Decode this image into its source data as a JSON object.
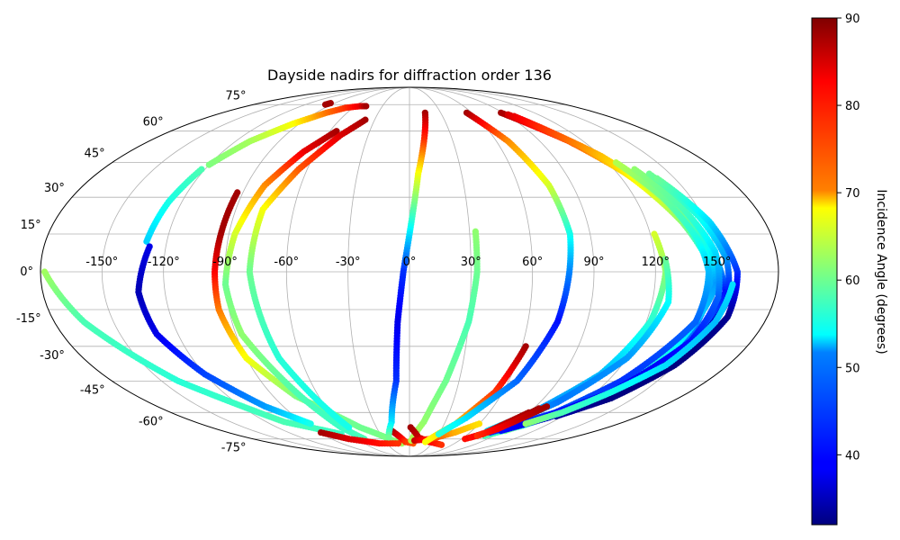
{
  "chart_data": {
    "type": "scatter",
    "projection": "mollweide",
    "title": "Dayside nadirs for diffraction order 136",
    "lon_ticks": [
      "-150°",
      "-120°",
      "-90°",
      "-60°",
      "-30°",
      "0°",
      "30°",
      "60°",
      "90°",
      "120°",
      "150°"
    ],
    "lat_ticks": [
      "-75°",
      "-60°",
      "-45°",
      "-30°",
      "-15°",
      "0°",
      "15°",
      "30°",
      "45°",
      "60°",
      "75°"
    ],
    "grid": true,
    "colorbar": {
      "label": "Incidence Angle (degrees)",
      "range": [
        32,
        90
      ],
      "ticks": [
        "40",
        "50",
        "60",
        "70",
        "80",
        "90"
      ],
      "colormap": "jet"
    },
    "tracks": [
      {
        "points": [
          [
            -178,
            0,
            63
          ],
          [
            -165,
            -20,
            58
          ],
          [
            -140,
            -45,
            56
          ],
          [
            -105,
            -65,
            58
          ],
          [
            -70,
            -72,
            57
          ]
        ]
      },
      {
        "points": [
          [
            -97,
            75,
            88
          ],
          [
            -95,
            76,
            88
          ]
        ]
      },
      {
        "points": [
          [
            -120,
            44,
            61
          ],
          [
            -110,
            55,
            63
          ],
          [
            -95,
            64,
            68
          ],
          [
            -80,
            70,
            76
          ],
          [
            -68,
            73,
            80
          ],
          [
            -55,
            74,
            84
          ],
          [
            -48,
            74,
            88
          ]
        ]
      },
      {
        "points": [
          [
            -130,
            12,
            51
          ],
          [
            -127,
            28,
            55
          ],
          [
            -122,
            42,
            58
          ]
        ]
      },
      {
        "points": [
          [
            -128,
            10,
            38
          ],
          [
            -133,
            -8,
            35
          ],
          [
            -131,
            -25,
            38
          ],
          [
            -120,
            -42,
            43
          ],
          [
            -103,
            -57,
            48
          ],
          [
            -85,
            -66,
            55
          ]
        ]
      },
      {
        "points": [
          [
            -93,
            32,
            88
          ],
          [
            -94,
            15,
            88
          ],
          [
            -95,
            0,
            83
          ],
          [
            -95,
            -15,
            76
          ],
          [
            -90,
            -35,
            68
          ],
          [
            -75,
            -52,
            61
          ],
          [
            -45,
            -68,
            60
          ],
          [
            -20,
            -76,
            61
          ],
          [
            -10,
            -78,
            63
          ]
        ]
      },
      {
        "points": [
          [
            -55,
            60,
            88
          ],
          [
            -68,
            50,
            84
          ],
          [
            -80,
            35,
            75
          ],
          [
            -87,
            15,
            66
          ],
          [
            -90,
            -5,
            60
          ],
          [
            -87,
            -25,
            62
          ],
          [
            -72,
            -52,
            58
          ],
          [
            -62,
            -68,
            57
          ],
          [
            -52,
            -75,
            58
          ]
        ]
      },
      {
        "points": [
          [
            -38,
            66,
            88
          ],
          [
            -50,
            58,
            85
          ],
          [
            -65,
            42,
            78
          ],
          [
            -76,
            25,
            68
          ],
          [
            -78,
            0,
            60
          ],
          [
            -72,
            -35,
            56
          ],
          [
            -62,
            -55,
            55
          ],
          [
            -55,
            -68,
            55
          ]
        ]
      },
      {
        "points": [
          [
            -88,
            -71,
            88
          ],
          [
            -70,
            -75,
            85
          ],
          [
            -40,
            -78,
            82
          ],
          [
            -15,
            -78,
            80
          ]
        ]
      },
      {
        "points": [
          [
            -17,
            -70,
            88
          ],
          [
            -10,
            -74,
            84
          ],
          [
            -5,
            -77,
            80
          ],
          [
            5,
            -78,
            78
          ]
        ]
      },
      {
        "points": [
          [
            15,
            70,
            88
          ],
          [
            10,
            55,
            80
          ],
          [
            5,
            40,
            68
          ],
          [
            1,
            20,
            56
          ],
          [
            -3,
            0,
            42
          ],
          [
            -6,
            -20,
            38
          ],
          [
            -8,
            -45,
            42
          ],
          [
            -15,
            -65,
            52
          ],
          [
            -23,
            -74,
            60
          ]
        ]
      },
      {
        "points": [
          [
            33,
            16,
            62
          ],
          [
            33,
            0,
            60
          ],
          [
            30,
            -20,
            58
          ],
          [
            22,
            -45,
            60
          ],
          [
            12,
            -65,
            62
          ],
          [
            2,
            -76,
            64
          ]
        ]
      },
      {
        "points": [
          [
            1,
            -68,
            88
          ],
          [
            10,
            -74,
            86
          ],
          [
            25,
            -77,
            83
          ],
          [
            45,
            -79,
            80
          ]
        ]
      },
      {
        "points": [
          [
            6,
            -76,
            86
          ],
          [
            25,
            -75,
            80
          ],
          [
            45,
            -71,
            73
          ],
          [
            60,
            -66,
            70
          ]
        ]
      },
      {
        "points": [
          [
            62,
            -30,
            88
          ],
          [
            55,
            -50,
            80
          ],
          [
            40,
            -66,
            72
          ],
          [
            20,
            -77,
            68
          ]
        ]
      },
      {
        "points": [
          [
            55,
            70,
            88
          ],
          [
            68,
            55,
            75
          ],
          [
            77,
            35,
            66
          ],
          [
            80,
            15,
            55
          ],
          [
            78,
            0,
            47
          ],
          [
            75,
            -20,
            40
          ],
          [
            65,
            -45,
            45
          ],
          [
            45,
            -63,
            52
          ],
          [
            30,
            -72,
            56
          ]
        ]
      },
      {
        "points": [
          [
            88,
            70,
            88
          ],
          [
            110,
            55,
            78
          ],
          [
            125,
            40,
            70
          ],
          [
            138,
            20,
            62
          ],
          [
            148,
            0,
            50
          ],
          [
            145,
            -30,
            45
          ],
          [
            125,
            -55,
            50
          ],
          [
            100,
            -67,
            56
          ],
          [
            80,
            -73,
            58
          ]
        ]
      },
      {
        "points": [
          [
            92,
            69,
            85
          ],
          [
            115,
            52,
            74
          ],
          [
            133,
            30,
            66
          ],
          [
            145,
            10,
            56
          ],
          [
            150,
            -5,
            48
          ],
          [
            140,
            -35,
            55
          ],
          [
            110,
            -60,
            60
          ],
          [
            92,
            -70,
            60
          ]
        ]
      },
      {
        "points": [
          [
            95,
            68,
            84
          ],
          [
            120,
            48,
            72
          ],
          [
            138,
            25,
            62
          ],
          [
            150,
            5,
            52
          ],
          [
            155,
            -8,
            40
          ],
          [
            145,
            -38,
            50
          ],
          [
            115,
            -60,
            58
          ]
        ]
      },
      {
        "points": [
          [
            125,
            45,
            64
          ],
          [
            135,
            30,
            60
          ],
          [
            143,
            12,
            55
          ],
          [
            146,
            0,
            50
          ],
          [
            145,
            -20,
            45
          ],
          [
            128,
            -45,
            42
          ],
          [
            110,
            -60,
            44
          ],
          [
            85,
            -69,
            40
          ]
        ]
      },
      {
        "points": [
          [
            132,
            42,
            62
          ],
          [
            142,
            25,
            58
          ],
          [
            150,
            8,
            52
          ],
          [
            152,
            -10,
            45
          ],
          [
            148,
            -28,
            40
          ],
          [
            130,
            -50,
            38
          ],
          [
            105,
            -63,
            40
          ],
          [
            80,
            -71,
            42
          ]
        ]
      },
      {
        "points": [
          [
            138,
            40,
            60
          ],
          [
            148,
            22,
            55
          ],
          [
            155,
            5,
            48
          ],
          [
            157,
            -12,
            38
          ],
          [
            150,
            -32,
            34
          ],
          [
            132,
            -52,
            33
          ],
          [
            110,
            -63,
            36
          ],
          [
            88,
            -70,
            40
          ]
        ]
      },
      {
        "points": [
          [
            140,
            38,
            60
          ],
          [
            152,
            20,
            52
          ],
          [
            160,
            0,
            42
          ],
          [
            160,
            -18,
            33
          ],
          [
            150,
            -38,
            32
          ],
          [
            135,
            -53,
            32
          ],
          [
            115,
            -62,
            34
          ]
        ]
      },
      {
        "points": [
          [
            122,
            15,
            66
          ],
          [
            125,
            0,
            62
          ],
          [
            122,
            -20,
            56
          ],
          [
            112,
            -42,
            50
          ],
          [
            95,
            -58,
            48
          ],
          [
            75,
            -70,
            52
          ]
        ]
      },
      {
        "points": [
          [
            125,
            5,
            60
          ],
          [
            128,
            -12,
            54
          ],
          [
            120,
            -35,
            48
          ],
          [
            102,
            -55,
            46
          ],
          [
            82,
            -68,
            50
          ]
        ]
      },
      {
        "points": [
          [
            64,
            -75,
            82
          ],
          [
            75,
            -72,
            84
          ],
          [
            82,
            -66,
            86
          ],
          [
            90,
            -60,
            88
          ]
        ]
      },
      {
        "points": [
          [
            68,
            -74,
            82
          ],
          [
            79,
            -70,
            85
          ],
          [
            86,
            -65,
            87
          ],
          [
            94,
            -58,
            88
          ]
        ]
      },
      {
        "points": [
          [
            72,
            -73,
            80
          ],
          [
            82,
            -69,
            83
          ],
          [
            90,
            -63,
            86
          ],
          [
            98,
            -57,
            88
          ]
        ]
      },
      {
        "points": [
          [
            100,
            -66,
            62
          ],
          [
            115,
            -60,
            58
          ],
          [
            130,
            -50,
            55
          ],
          [
            145,
            -38,
            52
          ],
          [
            155,
            -20,
            50
          ],
          [
            158,
            -5,
            52
          ]
        ]
      }
    ]
  }
}
